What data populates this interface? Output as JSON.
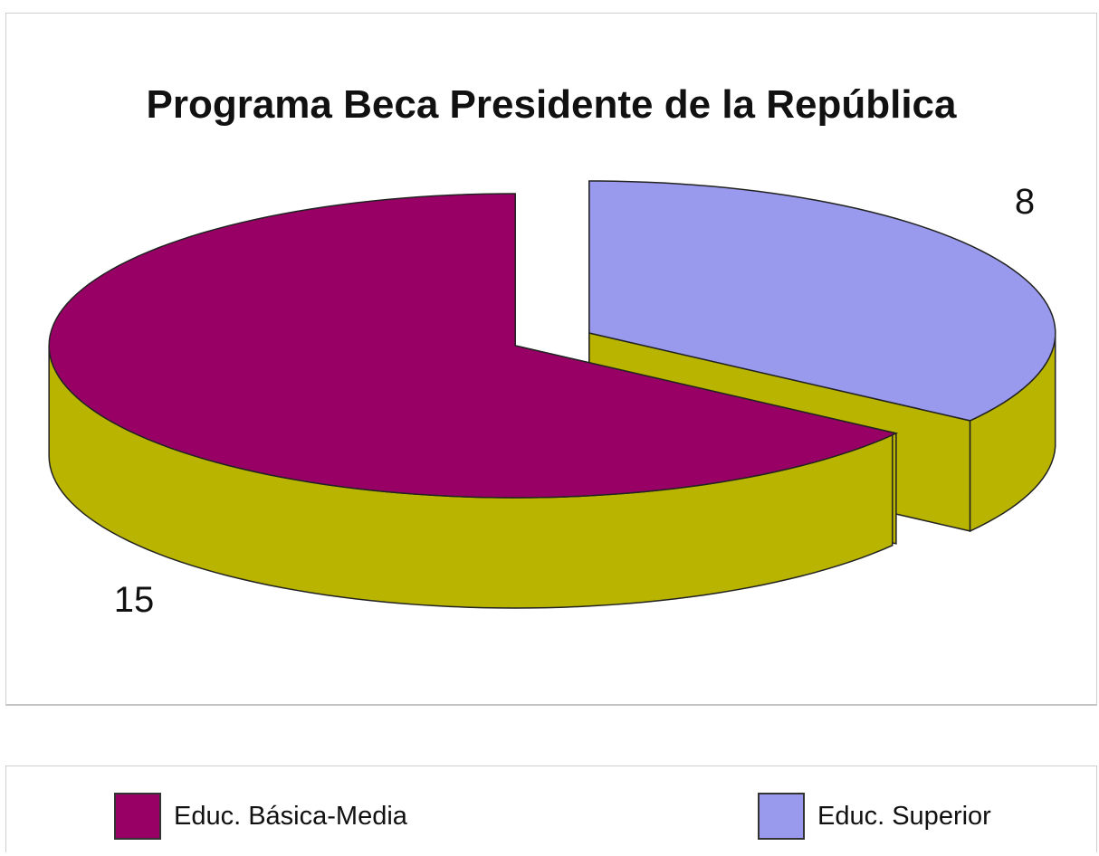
{
  "chart_data": {
    "type": "pie",
    "title": "Programa Beca Presidente de la República",
    "categories": [
      "Educ. Básica-Media",
      "Educ. Superior"
    ],
    "values": [
      15,
      8
    ],
    "data_labels": [
      "15",
      "8"
    ],
    "colors": {
      "Educ. Básica-Media": "#990066",
      "Educ. Superior": "#9999ee",
      "side": "#b8b400",
      "outline": "#222222"
    },
    "exploded": true,
    "three_d": true,
    "legend": {
      "placement": "bottom",
      "entries": [
        "Educ. Básica-Media",
        "Educ. Superior"
      ]
    }
  }
}
